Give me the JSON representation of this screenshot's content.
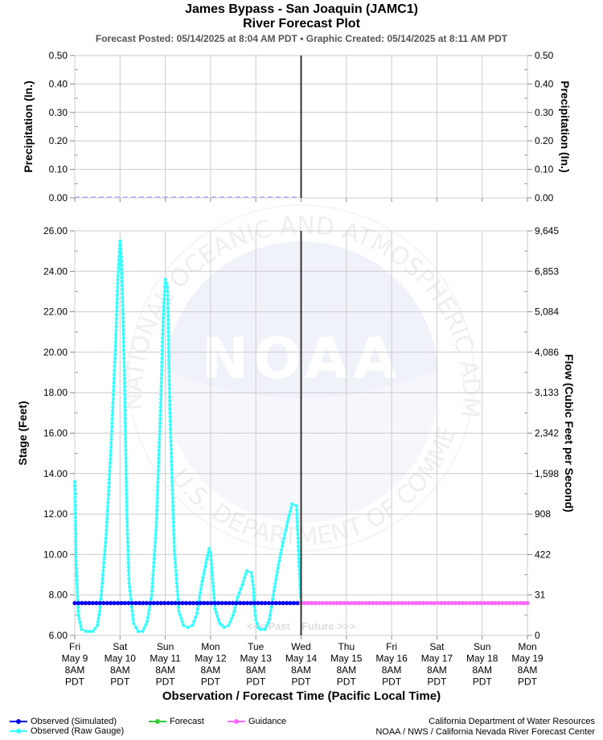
{
  "header": {
    "title_line1": "James Bypass - San Joaquin (JAMC1)",
    "title_line2": "River Forecast Plot",
    "subtitle": "Forecast Posted: 05/14/2025 at 8:04 AM PDT  •  Graphic Created: 05/14/2025 at 8:11 AM PDT"
  },
  "colors": {
    "observed_simulated": "#0000ee",
    "observed_raw": "#33ffff",
    "forecast": "#33cc33",
    "guidance": "#ff66ff",
    "now_line": "#333333",
    "precip": "#9999ff",
    "grid": "#cccccc"
  },
  "chart_data": [
    {
      "type": "line",
      "title": "Precipitation",
      "ylabel_left": "Precipitation (In.)",
      "ylabel_right": "Precipitation (In.)",
      "ylim": [
        0,
        0.5
      ],
      "yticks": [
        "0.00",
        "0.10",
        "0.20",
        "0.30",
        "0.40",
        "0.50"
      ],
      "grid": true,
      "series": [
        {
          "name": "Precipitation",
          "x_days": [
            0,
            5
          ],
          "values": [
            0,
            0
          ]
        }
      ]
    },
    {
      "type": "line",
      "xlabel": "Observation / Forecast Time (Pacific Local Time)",
      "ylabel_left": "Stage (Feet)",
      "ylabel_right": "Flow (Cubic Feet per Second)",
      "ylim": [
        6,
        26
      ],
      "yticks_left": [
        "6.00",
        "8.00",
        "10.00",
        "12.00",
        "14.00",
        "16.00",
        "18.00",
        "20.00",
        "22.00",
        "24.00",
        "26.00"
      ],
      "yticks_right": [
        "0",
        "31",
        "422",
        "908",
        "1,598",
        "2,342",
        "3,133",
        "4,086",
        "5,084",
        "6,853",
        "9,645"
      ],
      "x_categories": [
        [
          "Fri",
          "May 9",
          "8AM",
          "PDT"
        ],
        [
          "Sat",
          "May 10",
          "8AM",
          "PDT"
        ],
        [
          "Sun",
          "May 11",
          "8AM",
          "PDT"
        ],
        [
          "Mon",
          "May 12",
          "8AM",
          "PDT"
        ],
        [
          "Tue",
          "May 13",
          "8AM",
          "PDT"
        ],
        [
          "Wed",
          "May 14",
          "8AM",
          "PDT"
        ],
        [
          "Thu",
          "May 15",
          "8AM",
          "PDT"
        ],
        [
          "Fri",
          "May 16",
          "8AM",
          "PDT"
        ],
        [
          "Sat",
          "May 17",
          "8AM",
          "PDT"
        ],
        [
          "Sun",
          "May 18",
          "8AM",
          "PDT"
        ],
        [
          "Mon",
          "May 19",
          "8AM",
          "PDT"
        ]
      ],
      "now_day": 5,
      "past_future_label": "<<< Past    Future >>>",
      "grid": true,
      "series": [
        {
          "name": "Observed (Raw Gauge)",
          "x_days": [
            0,
            0.03,
            0.08,
            0.15,
            0.25,
            0.4,
            0.5,
            0.55,
            0.6,
            0.7,
            0.8,
            0.9,
            0.95,
            1.0,
            1.03,
            1.06,
            1.1,
            1.15,
            1.2,
            1.3,
            1.4,
            1.5,
            1.6,
            1.7,
            1.8,
            1.9,
            1.95,
            2.0,
            2.05,
            2.1,
            2.2,
            2.3,
            2.4,
            2.5,
            2.6,
            2.7,
            2.8,
            2.9,
            2.95,
            2.97,
            3.0,
            3.05,
            3.1,
            3.2,
            3.3,
            3.4,
            3.5,
            3.6,
            3.7,
            3.8,
            3.9,
            3.95,
            3.97,
            4.0,
            4.05,
            4.1,
            4.2,
            4.3,
            4.4,
            4.5,
            4.6,
            4.7,
            4.8,
            4.9,
            4.95,
            4.98,
            5.0
          ],
          "values": [
            13.6,
            9.5,
            7.0,
            6.3,
            6.2,
            6.2,
            6.5,
            7.2,
            8.4,
            11.2,
            15.3,
            20.3,
            23.6,
            25.5,
            24.7,
            22.3,
            18.5,
            12.0,
            8.6,
            6.6,
            6.2,
            6.2,
            6.7,
            8.0,
            11.4,
            17.5,
            21.5,
            23.6,
            23.2,
            17.2,
            10.2,
            7.2,
            6.5,
            6.4,
            6.5,
            7.1,
            8.5,
            9.6,
            10.1,
            10.3,
            10.1,
            8.6,
            7.3,
            6.6,
            6.4,
            6.5,
            7.0,
            7.9,
            8.5,
            9.2,
            9.1,
            8.3,
            7.4,
            6.8,
            6.4,
            6.3,
            6.3,
            6.8,
            8.2,
            9.5,
            10.6,
            11.6,
            12.5,
            12.4,
            9.8,
            8.3,
            7.7
          ]
        },
        {
          "name": "Observed (Simulated)",
          "x_days": [
            0,
            5
          ],
          "values": [
            7.6,
            7.6
          ]
        },
        {
          "name": "Guidance",
          "x_days": [
            5,
            10
          ],
          "values": [
            7.6,
            7.6
          ]
        }
      ]
    }
  ],
  "legend": [
    {
      "key": "observed_simulated",
      "label": "Observed (Simulated)"
    },
    {
      "key": "observed_raw",
      "label": "Observed (Raw Gauge)"
    },
    {
      "key": "forecast",
      "label": "Forecast"
    },
    {
      "key": "guidance",
      "label": "Guidance"
    }
  ],
  "credits": {
    "line1": "California Department of Water Resources",
    "line2": "NOAA / NWS / California Nevada River Forecast Center"
  },
  "watermark": {
    "logo_text": "NOAA",
    "ring_text": "NATIONAL OCEANIC AND ATMOSPHERIC ADMINISTRATION",
    "ring_text_bottom": "U.S. DEPARTMENT OF COMMERCE"
  }
}
